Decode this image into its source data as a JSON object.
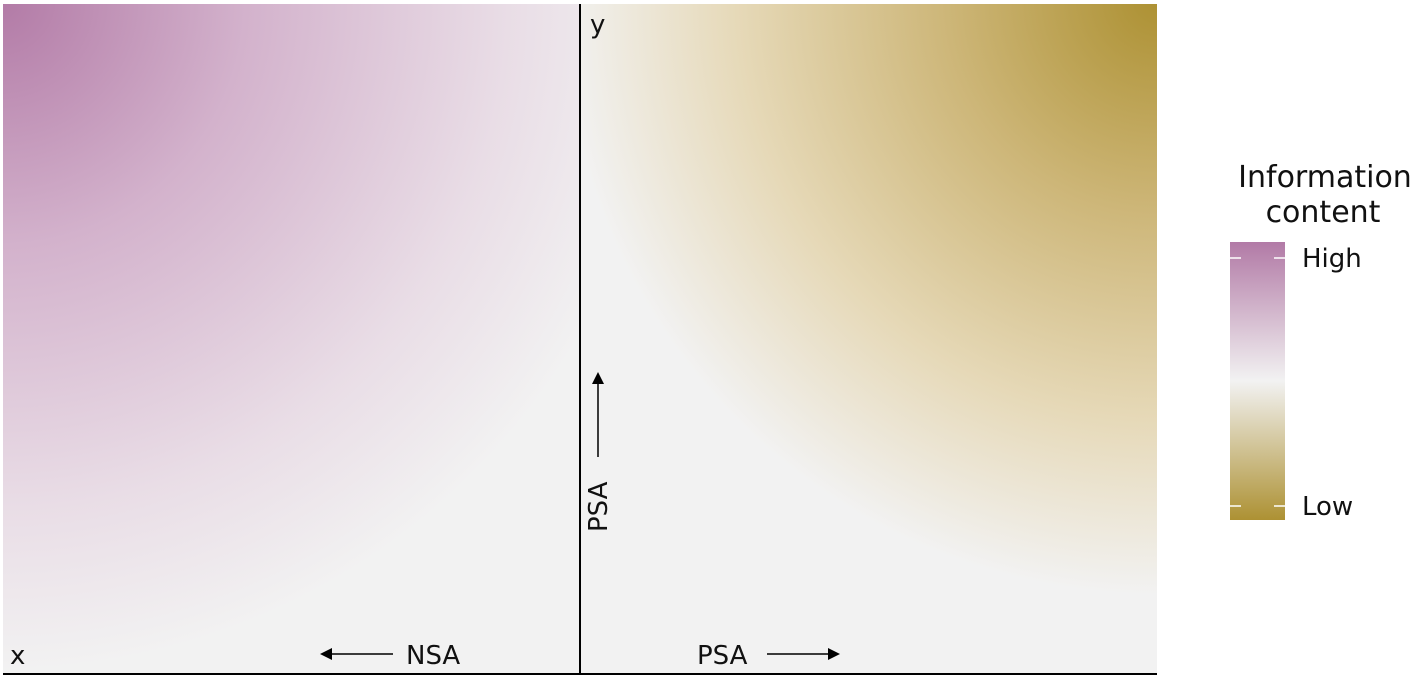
{
  "panel": {
    "x_axis_label": "x",
    "y_axis_label": "y",
    "left_arrow_label": "NSA",
    "right_arrow_label": "PSA",
    "vertical_arrow_label": "PSA"
  },
  "legend": {
    "title_line1": "Information",
    "title_line2": "content",
    "high_label": "High",
    "low_label": "Low",
    "high_color": "#b27aa6",
    "mid_color": "#f2f2f2",
    "low_color": "#ad9133"
  }
}
